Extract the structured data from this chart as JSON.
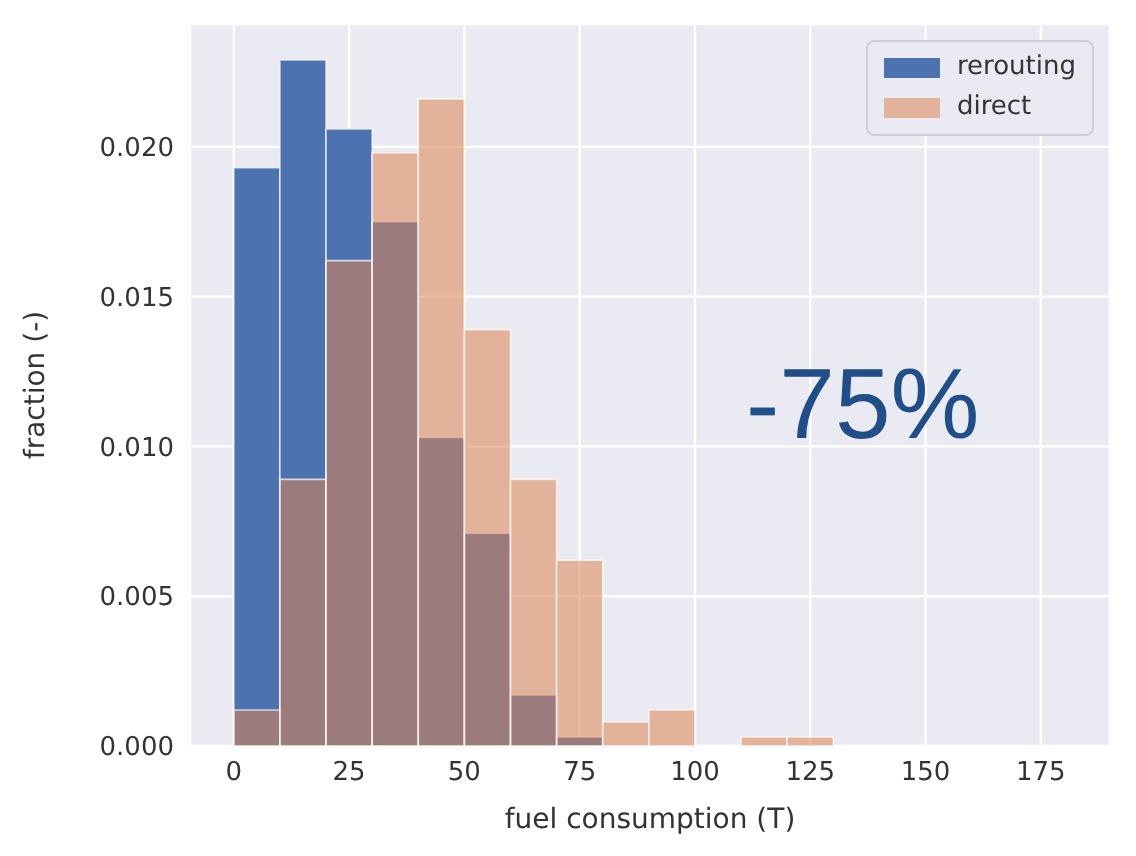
{
  "chart_data": {
    "type": "histogram",
    "xlabel": "fuel consumption (T)",
    "ylabel": "fraction (-)",
    "bins": [
      0,
      10,
      20,
      30,
      40,
      50,
      60,
      70,
      80,
      90,
      100,
      110,
      120,
      130
    ],
    "series": [
      {
        "name": "rerouting",
        "color": "#4c72b0",
        "values": [
          0.0193,
          0.0229,
          0.0206,
          0.0175,
          0.0103,
          0.0071,
          0.0017,
          0.0003,
          0,
          0,
          0,
          0,
          0
        ]
      },
      {
        "name": "direct",
        "color": "#dd8452",
        "values": [
          0.0012,
          0.0089,
          0.0162,
          0.0198,
          0.0216,
          0.0139,
          0.0089,
          0.0062,
          0.0008,
          0.0012,
          0,
          0.0003,
          0.0003
        ]
      }
    ],
    "xlim": [
      -9.5,
      190
    ],
    "xticks": [
      0,
      25,
      50,
      75,
      100,
      125,
      150,
      175
    ],
    "ylim": [
      0,
      0.0241
    ],
    "yticks": [
      {
        "value": 0,
        "label": "0.000"
      },
      {
        "value": 0.005,
        "label": "0.005"
      },
      {
        "value": 0.01,
        "label": "0.010"
      },
      {
        "value": 0.015,
        "label": "0.015"
      },
      {
        "value": 0.02,
        "label": "0.020"
      }
    ],
    "grid": true,
    "legend": "top right",
    "annotations": [
      "-75%"
    ]
  }
}
